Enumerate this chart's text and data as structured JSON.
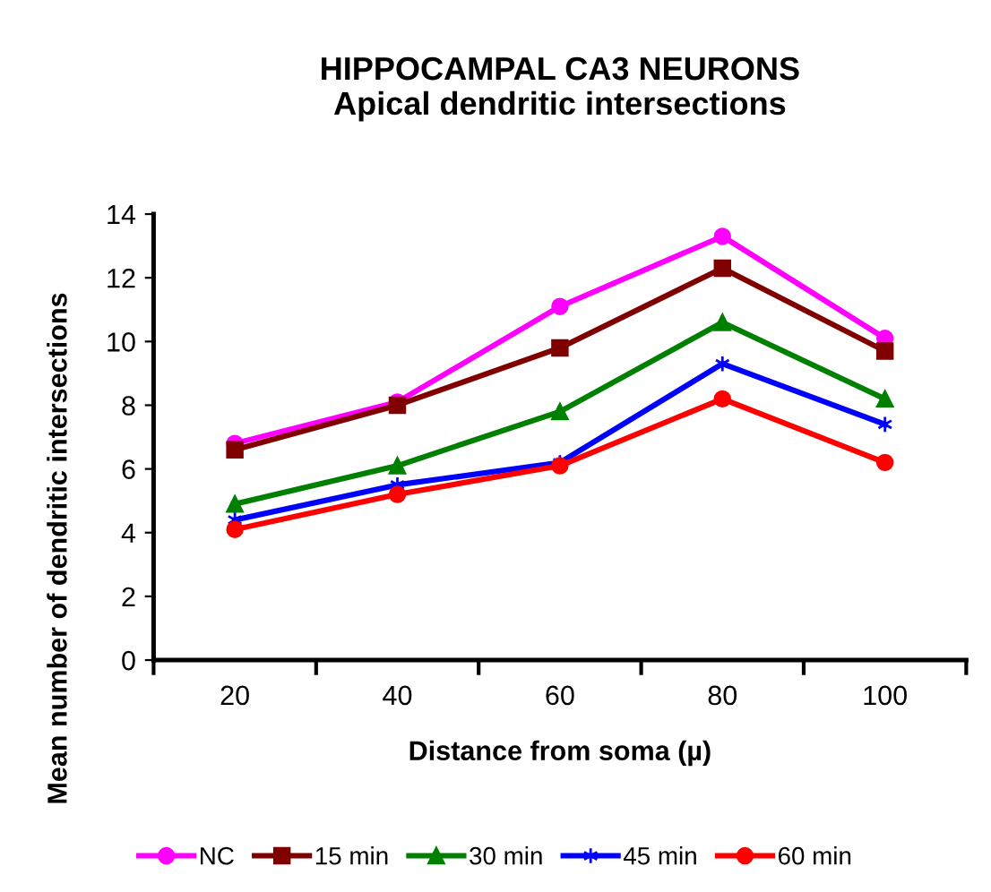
{
  "chart_data": {
    "type": "line",
    "title": "HIPPOCAMPAL CA3 NEURONS\nApical dendritic intersections",
    "xlabel": "Distance from soma (µ)",
    "ylabel": "Mean number of dendritic intersections",
    "categories": [
      "20",
      "40",
      "60",
      "80",
      "100"
    ],
    "series": [
      {
        "name": "NC",
        "color": "#ff00ff",
        "marker": "circle",
        "values": [
          6.8,
          8.1,
          11.1,
          13.3,
          10.1
        ]
      },
      {
        "name": "15 min",
        "color": "#800000",
        "marker": "square",
        "values": [
          6.6,
          8.0,
          9.8,
          12.3,
          9.7
        ]
      },
      {
        "name": "30 min",
        "color": "#008000",
        "marker": "triangle",
        "values": [
          4.9,
          6.1,
          7.8,
          10.6,
          8.2
        ]
      },
      {
        "name": "45 min",
        "color": "#0000ff",
        "marker": "cross",
        "values": [
          4.4,
          5.5,
          6.2,
          9.3,
          7.4
        ]
      },
      {
        "name": "60 min",
        "color": "#ff0000",
        "marker": "circle",
        "values": [
          4.1,
          5.2,
          6.1,
          8.2,
          6.2
        ]
      }
    ],
    "ylim": [
      0,
      14
    ],
    "yticks": [
      0,
      2,
      4,
      6,
      8,
      10,
      12,
      14
    ],
    "grid": false,
    "legend": "bottom",
    "line_style": "solid"
  }
}
